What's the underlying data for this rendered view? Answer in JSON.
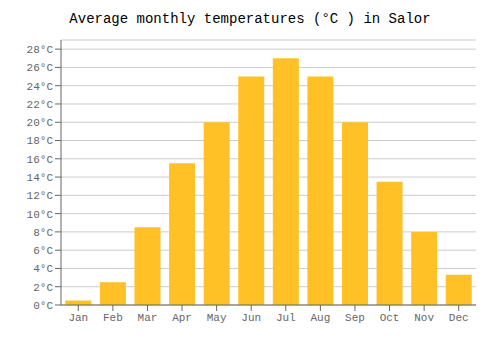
{
  "chart_data": {
    "type": "bar",
    "title": "Average monthly temperatures (°C ) in Salor",
    "categories": [
      "Jan",
      "Feb",
      "Mar",
      "Apr",
      "May",
      "Jun",
      "Jul",
      "Aug",
      "Sep",
      "Oct",
      "Nov",
      "Dec"
    ],
    "values": [
      0.5,
      2.5,
      8.5,
      15.5,
      20.0,
      25.0,
      27.0,
      25.0,
      20.0,
      13.5,
      8.0,
      3.3
    ],
    "color": "#FFC125",
    "ylim": [
      0,
      29
    ],
    "yticks": [
      {
        "value": 0,
        "label": "0°C"
      },
      {
        "value": 2,
        "label": "2°C"
      },
      {
        "value": 4,
        "label": "4°C"
      },
      {
        "value": 6,
        "label": "6°C"
      },
      {
        "value": 8,
        "label": "8°C"
      },
      {
        "value": 10,
        "label": "10°C"
      },
      {
        "value": 12,
        "label": "12°C"
      },
      {
        "value": 14,
        "label": "14°C"
      },
      {
        "value": 16,
        "label": "16°C"
      },
      {
        "value": 18,
        "label": "18°C"
      },
      {
        "value": 20,
        "label": "20°C"
      },
      {
        "value": 22,
        "label": "22°C"
      },
      {
        "value": 24,
        "label": "24°C"
      },
      {
        "value": 26,
        "label": "26°C"
      },
      {
        "value": 28,
        "label": "28°C"
      }
    ],
    "grid": true
  }
}
